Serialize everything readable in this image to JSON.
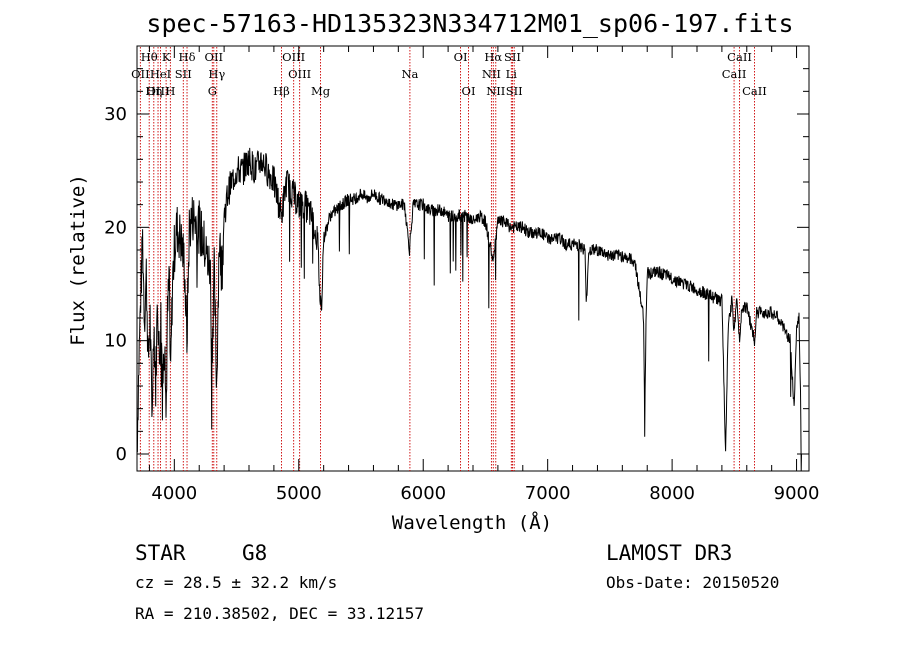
{
  "chart_data": {
    "type": "line",
    "title": "spec-57163-HD135323N334712M01_sp06-197.fits",
    "xlabel": "Wavelength (Å)",
    "ylabel": "Flux (relative)",
    "xlim": [
      3700,
      9100
    ],
    "ylim": [
      -1.5,
      36
    ],
    "x_ticks": [
      4000,
      5000,
      6000,
      7000,
      8000,
      9000
    ],
    "y_ticks": [
      0,
      10,
      20,
      30
    ],
    "grid": false,
    "series": [
      {
        "name": "spectrum",
        "anchors": [
          [
            3700,
            0.5
          ],
          [
            3715,
            8
          ],
          [
            3730,
            14
          ],
          [
            3745,
            19
          ],
          [
            3760,
            12
          ],
          [
            3775,
            16
          ],
          [
            3790,
            8
          ],
          [
            3805,
            12
          ],
          [
            3820,
            3
          ],
          [
            3835,
            12
          ],
          [
            3850,
            6
          ],
          [
            3865,
            14
          ],
          [
            3880,
            8
          ],
          [
            3895,
            13
          ],
          [
            3910,
            7
          ],
          [
            3925,
            11
          ],
          [
            3933,
            3
          ],
          [
            3945,
            12
          ],
          [
            3960,
            16
          ],
          [
            3968,
            6
          ],
          [
            3985,
            15
          ],
          [
            4000,
            18
          ],
          [
            4020,
            20
          ],
          [
            4050,
            19
          ],
          [
            4080,
            17
          ],
          [
            4101,
            10
          ],
          [
            4120,
            20
          ],
          [
            4150,
            21
          ],
          [
            4200,
            20
          ],
          [
            4250,
            18
          ],
          [
            4290,
            16
          ],
          [
            4300,
            8
          ],
          [
            4320,
            16
          ],
          [
            4340,
            6
          ],
          [
            4360,
            19
          ],
          [
            4383,
            16
          ],
          [
            4400,
            21
          ],
          [
            4430,
            23
          ],
          [
            4460,
            24
          ],
          [
            4500,
            25
          ],
          [
            4550,
            25
          ],
          [
            4600,
            26
          ],
          [
            4650,
            25
          ],
          [
            4700,
            26
          ],
          [
            4750,
            25
          ],
          [
            4800,
            24
          ],
          [
            4861,
            21
          ],
          [
            4900,
            24
          ],
          [
            4950,
            23
          ],
          [
            5000,
            22
          ],
          [
            5050,
            22
          ],
          [
            5100,
            21
          ],
          [
            5150,
            19
          ],
          [
            5167,
            15
          ],
          [
            5173,
            13
          ],
          [
            5184,
            14
          ],
          [
            5200,
            19
          ],
          [
            5250,
            21
          ],
          [
            5300,
            21.5
          ],
          [
            5350,
            22
          ],
          [
            5400,
            22.5
          ],
          [
            5450,
            22.5
          ],
          [
            5500,
            23
          ],
          [
            5550,
            22.5
          ],
          [
            5600,
            23
          ],
          [
            5650,
            22.5
          ],
          [
            5700,
            22.5
          ],
          [
            5750,
            22
          ],
          [
            5800,
            22
          ],
          [
            5850,
            22
          ],
          [
            5890,
            18
          ],
          [
            5896,
            19
          ],
          [
            5920,
            22
          ],
          [
            5950,
            22
          ],
          [
            6000,
            22
          ],
          [
            6050,
            21.5
          ],
          [
            6100,
            21.5
          ],
          [
            6150,
            21.5
          ],
          [
            6200,
            21
          ],
          [
            6250,
            21
          ],
          [
            6300,
            21
          ],
          [
            6350,
            21
          ],
          [
            6400,
            20.5
          ],
          [
            6450,
            21
          ],
          [
            6500,
            20.5
          ],
          [
            6563,
            17
          ],
          [
            6600,
            20.5
          ],
          [
            6650,
            20.5
          ],
          [
            6700,
            20
          ],
          [
            6750,
            20
          ],
          [
            6800,
            20
          ],
          [
            6850,
            19.5
          ],
          [
            6900,
            19.5
          ],
          [
            6950,
            19.5
          ],
          [
            7000,
            19
          ],
          [
            7050,
            19
          ],
          [
            7100,
            19
          ],
          [
            7150,
            18.5
          ],
          [
            7200,
            18.5
          ],
          [
            7250,
            18.5
          ],
          [
            7300,
            18
          ],
          [
            7310,
            13
          ],
          [
            7330,
            18
          ],
          [
            7400,
            18
          ],
          [
            7500,
            17.5
          ],
          [
            7600,
            17.5
          ],
          [
            7700,
            17
          ],
          [
            7771,
            12
          ],
          [
            7780,
            2
          ],
          [
            7790,
            12
          ],
          [
            7800,
            16
          ],
          [
            7900,
            16
          ],
          [
            8000,
            15.5
          ],
          [
            8100,
            15
          ],
          [
            8200,
            14.5
          ],
          [
            8300,
            14
          ],
          [
            8400,
            13.5
          ],
          [
            8430,
            0
          ],
          [
            8450,
            11
          ],
          [
            8480,
            13.5
          ],
          [
            8498,
            11
          ],
          [
            8520,
            13.5
          ],
          [
            8542,
            10
          ],
          [
            8560,
            13
          ],
          [
            8600,
            13
          ],
          [
            8662,
            10
          ],
          [
            8680,
            12.5
          ],
          [
            8750,
            12.5
          ],
          [
            8800,
            12.5
          ],
          [
            8850,
            12
          ],
          [
            8900,
            11
          ],
          [
            8950,
            10
          ],
          [
            8980,
            4
          ],
          [
            9000,
            11
          ],
          [
            9020,
            12
          ],
          [
            9040,
            0
          ]
        ]
      }
    ],
    "spectral_lines": [
      {
        "label": "Hθ",
        "x": 3798,
        "row": 0
      },
      {
        "label": "K",
        "x": 3934,
        "row": 0
      },
      {
        "label": "Hδ",
        "x": 4102,
        "row": 0
      },
      {
        "label": "OII",
        "x": 4317,
        "row": 0
      },
      {
        "label": "OIII",
        "x": 4959,
        "row": 0
      },
      {
        "label": "OI",
        "x": 6300,
        "row": 0
      },
      {
        "label": "Hα",
        "x": 6563,
        "row": 0
      },
      {
        "label": "SII",
        "x": 6717,
        "row": 0
      },
      {
        "label": "CaII",
        "x": 8542,
        "row": 0
      },
      {
        "label": "OII",
        "x": 3727,
        "row": 1
      },
      {
        "label": "HeI",
        "x": 3889,
        "row": 1
      },
      {
        "label": "SII",
        "x": 4072,
        "row": 1
      },
      {
        "label": "Hγ",
        "x": 4341,
        "row": 1
      },
      {
        "label": "OIII",
        "x": 5007,
        "row": 1
      },
      {
        "label": "Na",
        "x": 5893,
        "row": 1
      },
      {
        "label": "NII",
        "x": 6548,
        "row": 1
      },
      {
        "label": "Li",
        "x": 6708,
        "row": 1
      },
      {
        "label": "CaII",
        "x": 8498,
        "row": 1
      },
      {
        "label": "OIII",
        "x": 3869,
        "row": 2
      },
      {
        "label": "Hη",
        "x": 3835,
        "row": 2
      },
      {
        "label": "H",
        "x": 3968,
        "row": 2
      },
      {
        "label": "G",
        "x": 4305,
        "row": 2
      },
      {
        "label": "Hβ",
        "x": 4861,
        "row": 2
      },
      {
        "label": "Mg",
        "x": 5175,
        "row": 2
      },
      {
        "label": "OI",
        "x": 6364,
        "row": 2
      },
      {
        "label": "NII",
        "x": 6583,
        "row": 2
      },
      {
        "label": "SII",
        "x": 6731,
        "row": 2
      },
      {
        "label": "CaII",
        "x": 8662,
        "row": 2
      }
    ],
    "line_color": "#cc0000",
    "trace_color": "#000000"
  },
  "info": {
    "object_class": "STAR",
    "subclass": "G8",
    "survey": "LAMOST DR3",
    "cz": "cz = 28.5 ± 32.2 km/s",
    "obs_date": "Obs-Date: 20150520",
    "coords": "RA = 210.38502, DEC =  33.12157"
  }
}
